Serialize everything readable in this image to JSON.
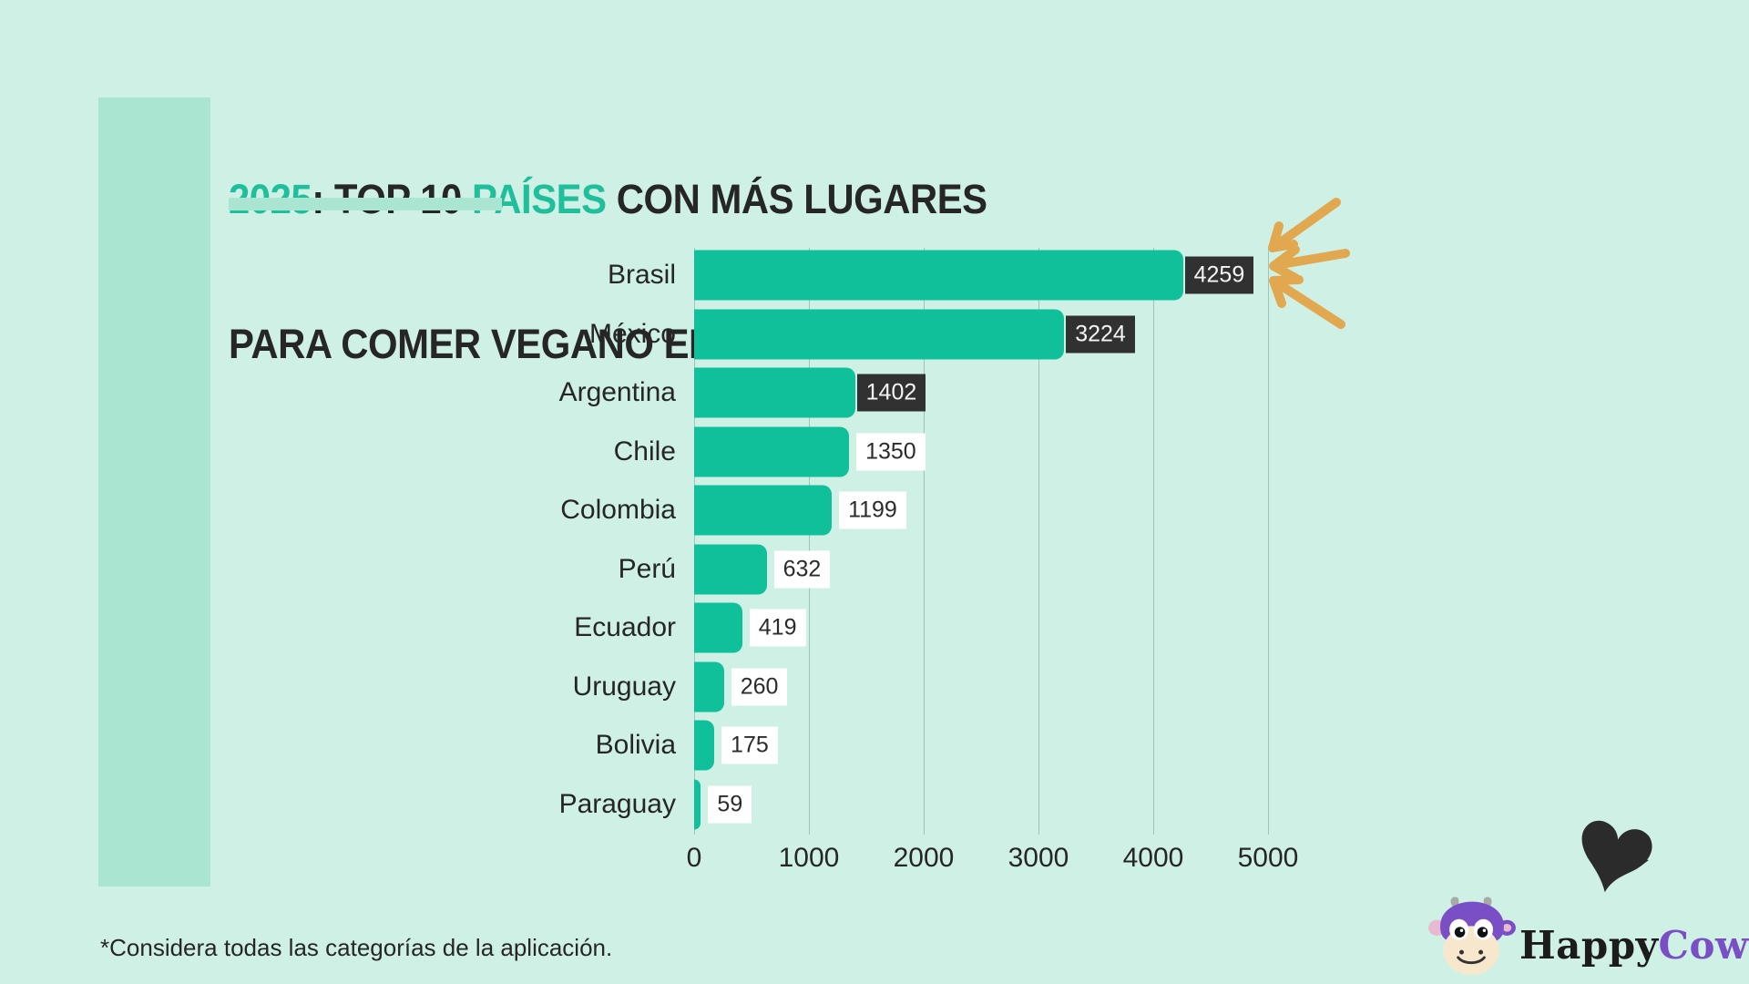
{
  "title": {
    "part_year": "2025",
    "part_mid": ": TOP 10 ",
    "part_paises": "PAÍSES",
    "part_end": " CON MÁS LUGARES",
    "line2": "PARA COMER VEGANO EN AMÉRICA LATINA"
  },
  "chart_data": {
    "type": "bar",
    "orientation": "horizontal",
    "categories": [
      "Brasil",
      "México",
      "Argentina",
      "Chile",
      "Colombia",
      "Perú",
      "Ecuador",
      "Uruguay",
      "Bolivia",
      "Paraguay"
    ],
    "values": [
      4259,
      3224,
      1402,
      1350,
      1199,
      632,
      419,
      260,
      175,
      59
    ],
    "value_label_styles": [
      "dark",
      "dark",
      "dark",
      "light",
      "light",
      "light",
      "light",
      "light",
      "light",
      "light"
    ],
    "xlim": [
      0,
      5000
    ],
    "x_ticks": [
      0,
      1000,
      2000,
      3000,
      4000,
      5000
    ],
    "grid": true,
    "legend": false,
    "title": "2025: TOP 10 PAÍSES CON MÁS LUGARES PARA COMER VEGANO EN AMÉRICA LATINA",
    "xlabel": "",
    "ylabel": ""
  },
  "footnote": "*Considera todas las categorías de la aplicación.",
  "logo": {
    "happy": "Happy",
    "cow": "Cow"
  },
  "colors": {
    "background": "#cff1e5",
    "accent_block": "#aae5d1",
    "bar": "#10c09b",
    "title_accent": "#1fbf9b",
    "dark_label_bg": "#313131",
    "arrow_orange": "#e1a84f",
    "logo_purple": "#7a4fc5",
    "text_dark": "#262626",
    "gridline": "#a3c3b8"
  }
}
